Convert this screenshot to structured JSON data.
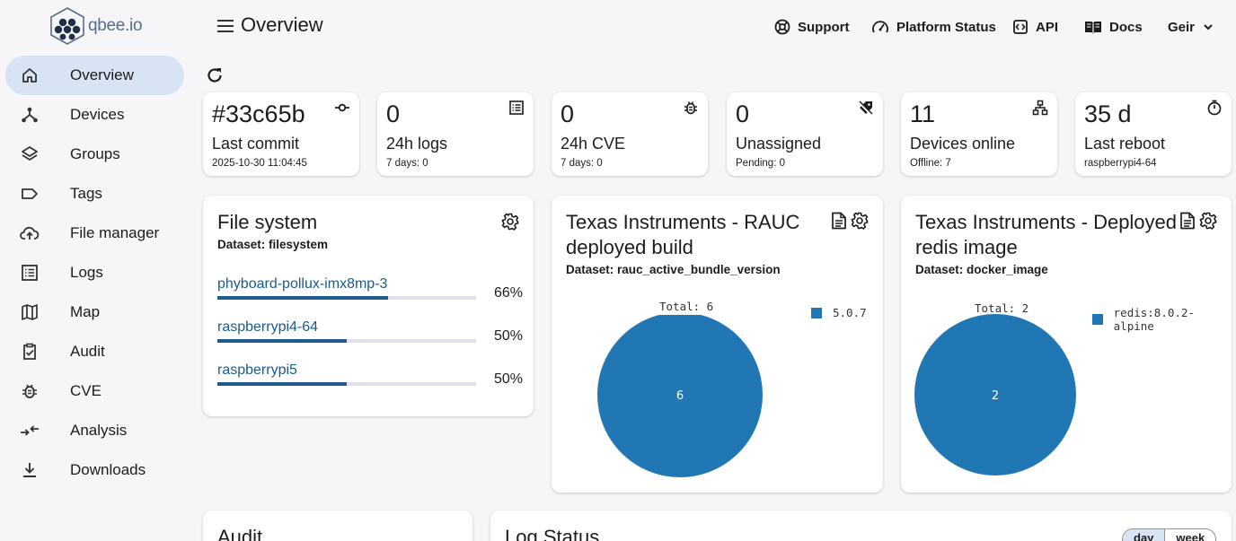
{
  "app": {
    "logo_text": "qbee.io",
    "page_title": "Overview"
  },
  "header": {
    "links": [
      {
        "label": "Support",
        "icon": "lifebuoy-icon"
      },
      {
        "label": "Platform Status",
        "icon": "gauge-icon"
      },
      {
        "label": "API",
        "icon": "api-icon"
      },
      {
        "label": "Docs",
        "icon": "book-icon"
      }
    ],
    "user": "Geir"
  },
  "sidebar": {
    "items": [
      {
        "label": "Overview",
        "icon": "home-icon",
        "active": true
      },
      {
        "label": "Devices",
        "icon": "devices-icon"
      },
      {
        "label": "Groups",
        "icon": "layers-icon"
      },
      {
        "label": "Tags",
        "icon": "tag-icon"
      },
      {
        "label": "File manager",
        "icon": "cloud-upload-icon"
      },
      {
        "label": "Logs",
        "icon": "list-icon"
      },
      {
        "label": "Map",
        "icon": "map-icon"
      },
      {
        "label": "Audit",
        "icon": "clipboard-check-icon"
      },
      {
        "label": "CVE",
        "icon": "bug-icon"
      },
      {
        "label": "Analysis",
        "icon": "compare-arrows-icon"
      },
      {
        "label": "Downloads",
        "icon": "download-icon"
      }
    ]
  },
  "stats": [
    {
      "value": "#33c65b",
      "label": "Last commit",
      "sub": "2025-10-30 11:04:45",
      "icon": "commit-icon"
    },
    {
      "value": "0",
      "label": "24h logs",
      "sub": "7 days: 0",
      "icon": "log-list-icon"
    },
    {
      "value": "0",
      "label": "24h CVE",
      "sub": "7 days: 0",
      "icon": "bug-icon"
    },
    {
      "value": "0",
      "label": "Unassigned",
      "sub": "Pending: 0",
      "icon": "tag-off-icon"
    },
    {
      "value": "11",
      "label": "Devices online",
      "sub": "Offline: 7",
      "icon": "network-icon"
    },
    {
      "value": "35 d",
      "label": "Last reboot",
      "sub": "raspberrypi4-64",
      "icon": "timer-icon"
    }
  ],
  "filesystem": {
    "title": "File system",
    "dataset": "Dataset: filesystem",
    "rows": [
      {
        "name": "phyboard-pollux-imx8mp-3",
        "percent": "66%",
        "fill": 0.66
      },
      {
        "name": "raspberrypi4-64",
        "percent": "50%",
        "fill": 0.5
      },
      {
        "name": "raspberrypi5",
        "percent": "50%",
        "fill": 0.5
      }
    ]
  },
  "rauc": {
    "title_line1": "Texas Instruments - RAUC",
    "title_line2": "deployed build",
    "dataset": "Dataset: rauc_active_bundle_version",
    "total": "Total: 6",
    "legend": "5.0.7",
    "slice_value": "6",
    "color": "#2176b4"
  },
  "docker": {
    "title_line1": "Texas Instruments - Deployed",
    "title_line2": "redis image",
    "dataset": "Dataset: docker_image",
    "total": "Total: 2",
    "legend": "redis:8.0.2-alpine",
    "slice_value": "2",
    "color": "#2176b4"
  },
  "audit": {
    "title": "Audit"
  },
  "log_status": {
    "title": "Log Status",
    "tabs": [
      "day",
      "week"
    ],
    "active_tab": "day"
  }
}
